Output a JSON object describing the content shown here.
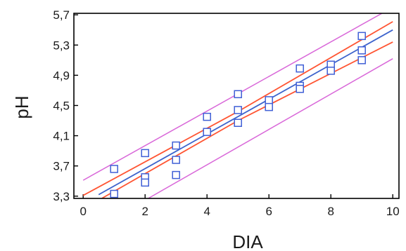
{
  "chart_data": {
    "type": "scatter",
    "title": "",
    "xlabel": "DIA",
    "ylabel": "pH",
    "xlim": [
      -0.3,
      10.2
    ],
    "ylim": [
      3.27,
      5.72
    ],
    "xticks": [
      0,
      2,
      4,
      6,
      8,
      10
    ],
    "xtick_labels": [
      "0",
      "2",
      "4",
      "6",
      "8",
      "10"
    ],
    "yticks": [
      3.3,
      3.7,
      4.1,
      4.5,
      4.9,
      5.3,
      5.7
    ],
    "ytick_labels": [
      "3,3",
      "3,7",
      "4,1",
      "4,5",
      "4,9",
      "5,3",
      "5,7"
    ],
    "grid": false,
    "legend": "none",
    "points": [
      {
        "x": 1,
        "y": 3.66
      },
      {
        "x": 1,
        "y": 3.33
      },
      {
        "x": 2,
        "y": 3.87
      },
      {
        "x": 2,
        "y": 3.55
      },
      {
        "x": 2,
        "y": 3.48
      },
      {
        "x": 3,
        "y": 3.97
      },
      {
        "x": 3,
        "y": 3.78
      },
      {
        "x": 3,
        "y": 3.58
      },
      {
        "x": 4,
        "y": 4.35
      },
      {
        "x": 4,
        "y": 4.15
      },
      {
        "x": 5,
        "y": 4.65
      },
      {
        "x": 5,
        "y": 4.44
      },
      {
        "x": 5,
        "y": 4.27
      },
      {
        "x": 6,
        "y": 4.57
      },
      {
        "x": 6,
        "y": 4.48
      },
      {
        "x": 7,
        "y": 4.99
      },
      {
        "x": 7,
        "y": 4.76
      },
      {
        "x": 7,
        "y": 4.72
      },
      {
        "x": 8,
        "y": 5.04
      },
      {
        "x": 8,
        "y": 4.96
      },
      {
        "x": 9,
        "y": 5.42
      },
      {
        "x": 9,
        "y": 5.23
      },
      {
        "x": 9,
        "y": 5.1
      }
    ],
    "fit_line": [
      {
        "x": 0.5,
        "y": 3.32
      },
      {
        "x": 10,
        "y": 5.5
      }
    ],
    "confidence_band": {
      "upper": [
        {
          "x": 0,
          "y": 3.31
        },
        {
          "x": 5,
          "y": 4.42
        },
        {
          "x": 10,
          "y": 5.61
        }
      ],
      "lower": [
        {
          "x": 0.6,
          "y": 3.27
        },
        {
          "x": 5,
          "y": 4.3
        },
        {
          "x": 10,
          "y": 5.34
        }
      ]
    },
    "prediction_band": {
      "upper": [
        {
          "x": 0,
          "y": 3.51
        },
        {
          "x": 10,
          "y": 5.8
        }
      ],
      "lower": [
        {
          "x": 2.1,
          "y": 3.27
        },
        {
          "x": 10,
          "y": 5.12
        }
      ]
    },
    "colors": {
      "points": "#3f5fd6",
      "fit_line": "#3d63cc",
      "confidence_band": "#ff5533",
      "prediction_band": "#d968d9",
      "axis": "#000000"
    }
  }
}
